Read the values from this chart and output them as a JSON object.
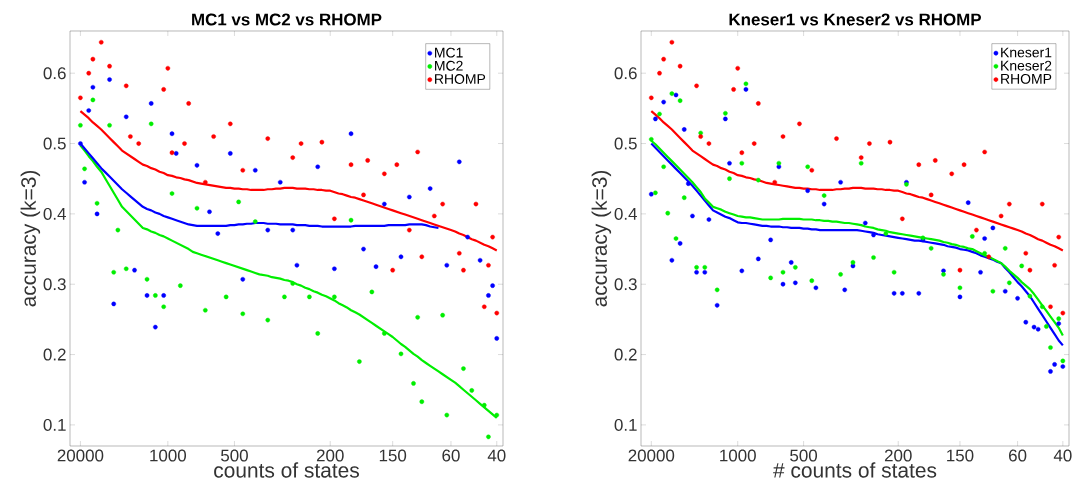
{
  "chart_data": [
    {
      "type": "scatter",
      "title": "MC1 vs MC2 vs RHOMP",
      "xlabel": "counts of states",
      "ylabel": "accuracy (k=3)",
      "ylim": [
        0.07,
        0.66
      ],
      "categories": [
        "20000",
        null,
        null,
        null,
        null,
        null,
        null,
        null,
        null,
        null,
        null,
        null,
        null,
        null,
        null,
        null,
        null,
        null,
        null,
        null,
        null,
        "1000",
        null,
        null,
        null,
        null,
        null,
        null,
        null,
        null,
        null,
        null,
        null,
        null,
        null,
        null,
        null,
        "500",
        null,
        null,
        null,
        null,
        null,
        null,
        null,
        null,
        null,
        null,
        null,
        null,
        null,
        null,
        null,
        null,
        null,
        null,
        null,
        null,
        null,
        null,
        "200",
        null,
        null,
        null,
        null,
        null,
        null,
        null,
        null,
        null,
        null,
        null,
        null,
        null,
        null,
        "150",
        null,
        null,
        null,
        null,
        null,
        null,
        null,
        null,
        null,
        null,
        null,
        null,
        null,
        "60",
        null,
        null,
        null,
        null,
        null,
        null,
        null,
        null,
        null,
        null,
        "40"
      ],
      "yticks": [
        0.1,
        0.2,
        0.3,
        0.4,
        0.5,
        0.6
      ],
      "legend": "top right",
      "series": [
        {
          "name": "MC1",
          "color": "#0000ff",
          "marker": "circle",
          "values": [
            0.5,
            0.445,
            0.547,
            0.58,
            0.4,
            null,
            null,
            0.591,
            0.272,
            null,
            null,
            0.538,
            null,
            0.32,
            null,
            null,
            0.284,
            0.557,
            0.239,
            null,
            0.284,
            null,
            0.514,
            0.486,
            null,
            null,
            null,
            null,
            0.469,
            null,
            null,
            0.403,
            null,
            0.372,
            null,
            null,
            0.486,
            null,
            null,
            0.307,
            null,
            null,
            0.462,
            null,
            null,
            0.377,
            null,
            null,
            0.445,
            null,
            null,
            0.377,
            0.327,
            null,
            null,
            null,
            null,
            0.467,
            null,
            null,
            null,
            0.322,
            null,
            null,
            null,
            0.514,
            null,
            null,
            0.35,
            null,
            null,
            0.325,
            null,
            0.414,
            null,
            null,
            null,
            0.339,
            null,
            0.424,
            null,
            null,
            null,
            null,
            0.436,
            null,
            null,
            null,
            0.327,
            null,
            null,
            0.474,
            null,
            0.367,
            null,
            null,
            0.334,
            null,
            0.284,
            0.298,
            0.223
          ]
        },
        {
          "name": "MC2",
          "color": "#00ee00",
          "marker": "circle",
          "values": [
            0.526,
            0.464,
            null,
            0.562,
            0.415,
            null,
            null,
            0.526,
            0.317,
            0.377,
            null,
            0.322,
            null,
            null,
            null,
            null,
            0.307,
            0.528,
            0.284,
            null,
            0.268,
            null,
            0.429,
            null,
            0.298,
            null,
            null,
            null,
            0.408,
            null,
            0.263,
            null,
            null,
            null,
            null,
            0.282,
            null,
            null,
            0.417,
            0.258,
            null,
            null,
            0.389,
            null,
            null,
            0.249,
            null,
            null,
            null,
            0.282,
            null,
            0.301,
            null,
            null,
            null,
            0.282,
            null,
            0.23,
            null,
            null,
            null,
            0.282,
            null,
            null,
            null,
            0.391,
            null,
            0.19,
            null,
            null,
            0.289,
            null,
            null,
            0.23,
            null,
            null,
            null,
            0.201,
            null,
            null,
            0.159,
            0.253,
            0.133,
            null,
            null,
            null,
            null,
            0.256,
            0.114,
            null,
            null,
            null,
            0.18,
            null,
            0.149,
            null,
            null,
            0.128,
            0.083,
            null,
            0.114
          ]
        },
        {
          "name": "RHOMP",
          "color": "#ff0000",
          "marker": "circle",
          "values": [
            0.565,
            null,
            0.6,
            0.62,
            null,
            0.644,
            null,
            0.61,
            null,
            null,
            null,
            0.582,
            0.51,
            null,
            0.5,
            null,
            null,
            null,
            null,
            null,
            0.577,
            0.607,
            0.487,
            null,
            null,
            0.5,
            0.557,
            null,
            null,
            null,
            0.445,
            null,
            0.51,
            null,
            null,
            null,
            0.528,
            null,
            null,
            0.462,
            null,
            null,
            null,
            null,
            null,
            0.507,
            null,
            null,
            null,
            null,
            null,
            0.48,
            null,
            0.5,
            null,
            null,
            null,
            null,
            0.502,
            null,
            null,
            0.393,
            null,
            null,
            null,
            0.47,
            null,
            null,
            0.427,
            0.476,
            null,
            null,
            null,
            0.457,
            null,
            0.32,
            0.47,
            null,
            null,
            0.377,
            null,
            0.488,
            0.339,
            null,
            null,
            0.397,
            null,
            0.414,
            null,
            null,
            null,
            0.344,
            0.32,
            null,
            null,
            0.414,
            null,
            0.268,
            0.327,
            0.367,
            0.259
          ]
        },
        {
          "type": "line",
          "color": "#ff0000",
          "values": [
            0.546,
            0.541,
            0.536,
            0.53,
            0.525,
            0.52,
            0.514,
            0.508,
            0.502,
            0.496,
            0.49,
            0.486,
            0.482,
            0.478,
            0.474,
            0.47,
            0.468,
            0.465,
            0.463,
            0.46,
            0.458,
            0.455,
            0.454,
            0.452,
            0.451,
            0.449,
            0.448,
            0.446,
            0.444,
            0.443,
            0.442,
            0.441,
            0.44,
            0.439,
            0.438,
            0.437,
            0.437,
            0.436,
            0.436,
            0.435,
            0.435,
            0.434,
            0.434,
            0.434,
            0.434,
            0.435,
            0.435,
            0.436,
            0.436,
            0.437,
            0.437,
            0.437,
            0.436,
            0.436,
            0.436,
            0.435,
            0.435,
            0.434,
            0.434,
            0.433,
            0.433,
            0.431,
            0.429,
            0.428,
            0.426,
            0.424,
            0.423,
            0.421,
            0.419,
            0.417,
            0.415,
            0.413,
            0.411,
            0.409,
            0.407,
            0.405,
            0.403,
            0.401,
            0.399,
            0.397,
            0.395,
            0.393,
            0.391,
            0.389,
            0.387,
            0.385,
            0.383,
            0.381,
            0.379,
            0.377,
            0.375,
            0.372,
            0.37,
            0.367,
            0.364,
            0.362,
            0.359,
            0.356,
            0.354,
            0.351,
            0.348
          ]
        },
        {
          "type": "line",
          "color": "#0000ff",
          "values": [
            0.5,
            0.493,
            0.486,
            0.479,
            0.472,
            0.465,
            0.459,
            0.453,
            0.447,
            0.441,
            0.435,
            0.43,
            0.425,
            0.42,
            0.415,
            0.41,
            0.407,
            0.405,
            0.402,
            0.4,
            0.397,
            0.395,
            0.393,
            0.391,
            0.389,
            0.387,
            0.385,
            0.384,
            0.383,
            0.383,
            0.383,
            0.383,
            0.383,
            0.383,
            0.383,
            0.383,
            0.384,
            0.384,
            0.385,
            0.385,
            0.386,
            0.386,
            0.387,
            0.387,
            0.387,
            0.386,
            0.386,
            0.386,
            0.385,
            0.385,
            0.385,
            0.385,
            0.384,
            0.384,
            0.384,
            0.383,
            0.383,
            0.383,
            0.382,
            0.382,
            0.382,
            0.382,
            0.382,
            0.382,
            0.382,
            0.382,
            0.383,
            0.383,
            0.383,
            0.383,
            0.383,
            0.383,
            0.383,
            0.383,
            0.384,
            0.384,
            0.384,
            0.384,
            0.384,
            0.385,
            0.385,
            0.385,
            0.385,
            0.384,
            0.382,
            0.381,
            0.38,
            null,
            null,
            null,
            null,
            null,
            null,
            null,
            null,
            null,
            null,
            null,
            null,
            null,
            null
          ]
        },
        {
          "type": "line",
          "color": "#00ee00",
          "values": [
            0.497,
            0.49,
            0.482,
            0.475,
            0.467,
            0.46,
            0.45,
            0.44,
            0.43,
            0.42,
            0.41,
            0.404,
            0.398,
            0.392,
            0.386,
            0.38,
            0.378,
            0.375,
            0.373,
            0.37,
            0.368,
            0.365,
            0.362,
            0.359,
            0.356,
            0.353,
            0.35,
            0.346,
            0.344,
            0.342,
            0.34,
            0.338,
            0.336,
            0.334,
            0.332,
            0.33,
            0.328,
            0.326,
            0.324,
            0.322,
            0.32,
            0.318,
            0.316,
            0.314,
            0.313,
            0.312,
            0.31,
            0.309,
            0.308,
            0.306,
            0.305,
            0.303,
            0.3,
            0.298,
            0.295,
            0.293,
            0.29,
            0.288,
            0.285,
            0.283,
            0.28,
            0.277,
            0.273,
            0.27,
            0.267,
            0.263,
            0.26,
            0.257,
            0.253,
            0.249,
            0.245,
            0.241,
            0.237,
            0.233,
            0.229,
            0.225,
            0.22,
            0.215,
            0.211,
            0.206,
            0.201,
            0.197,
            0.192,
            0.188,
            0.184,
            0.18,
            0.176,
            0.172,
            0.168,
            0.164,
            0.16,
            0.155,
            0.15,
            0.145,
            0.14,
            0.135,
            0.13,
            0.125,
            0.12,
            0.115,
            0.11
          ]
        }
      ]
    },
    {
      "type": "scatter",
      "title": "Kneser1 vs Kneser2 vs RHOMP",
      "xlabel": "# counts of states",
      "ylabel": "accuracy (k=3)",
      "ylim": [
        0.07,
        0.66
      ],
      "categories": [
        "20000",
        null,
        null,
        null,
        null,
        null,
        null,
        null,
        null,
        null,
        null,
        null,
        null,
        null,
        null,
        null,
        null,
        null,
        null,
        null,
        null,
        "1000",
        null,
        null,
        null,
        null,
        null,
        null,
        null,
        null,
        null,
        null,
        null,
        null,
        null,
        null,
        null,
        "500",
        null,
        null,
        null,
        null,
        null,
        null,
        null,
        null,
        null,
        null,
        null,
        null,
        null,
        null,
        null,
        null,
        null,
        null,
        null,
        null,
        null,
        null,
        "200",
        null,
        null,
        null,
        null,
        null,
        null,
        null,
        null,
        null,
        null,
        null,
        null,
        null,
        null,
        "150",
        null,
        null,
        null,
        null,
        null,
        null,
        null,
        null,
        null,
        null,
        null,
        null,
        null,
        "60",
        null,
        null,
        null,
        null,
        null,
        null,
        null,
        null,
        null,
        null,
        "40"
      ],
      "yticks": [
        0.1,
        0.2,
        0.3,
        0.4,
        0.5,
        0.6
      ],
      "legend": "top right",
      "series": [
        {
          "name": "Kneser1",
          "color": "#0000ff",
          "marker": "circle",
          "values": [
            0.428,
            0.535,
            null,
            0.559,
            null,
            0.334,
            0.569,
            0.358,
            0.52,
            0.443,
            0.397,
            0.317,
            null,
            0.317,
            0.392,
            null,
            0.27,
            null,
            0.535,
            0.472,
            null,
            null,
            0.319,
            0.577,
            null,
            null,
            0.336,
            null,
            null,
            0.363,
            null,
            0.467,
            0.3,
            null,
            0.331,
            0.302,
            null,
            null,
            0.433,
            null,
            0.295,
            null,
            0.414,
            null,
            null,
            null,
            0.445,
            0.292,
            null,
            0.326,
            null,
            null,
            0.387,
            null,
            0.37,
            null,
            null,
            null,
            null,
            0.287,
            null,
            0.287,
            0.445,
            null,
            null,
            0.287,
            0.363,
            null,
            null,
            null,
            null,
            0.319,
            null,
            null,
            null,
            0.282,
            null,
            0.416,
            null,
            null,
            0.317,
            0.365,
            null,
            0.38,
            null,
            null,
            0.29,
            null,
            null,
            0.28,
            null,
            0.246,
            null,
            0.239,
            0.236,
            null,
            null,
            0.176,
            0.186,
            0.244,
            0.183
          ]
        },
        {
          "name": "Kneser2",
          "color": "#00ee00",
          "marker": "circle",
          "values": [
            0.506,
            0.43,
            0.542,
            0.467,
            0.401,
            0.571,
            0.365,
            0.561,
            0.423,
            null,
            null,
            0.324,
            0.515,
            0.324,
            null,
            null,
            0.292,
            null,
            0.543,
            0.45,
            null,
            null,
            0.472,
            0.585,
            null,
            null,
            0.448,
            null,
            null,
            0.309,
            null,
            0.472,
            0.317,
            null,
            null,
            0.324,
            null,
            null,
            0.467,
            0.305,
            null,
            null,
            0.426,
            null,
            null,
            null,
            0.314,
            null,
            null,
            0.331,
            null,
            0.472,
            null,
            null,
            0.338,
            null,
            null,
            0.372,
            null,
            0.317,
            null,
            null,
            0.442,
            null,
            null,
            null,
            0.366,
            null,
            0.351,
            null,
            null,
            0.314,
            null,
            null,
            null,
            0.295,
            null,
            null,
            0.368,
            null,
            null,
            0.344,
            null,
            0.29,
            null,
            null,
            0.351,
            0.302,
            null,
            null,
            0.326,
            null,
            0.283,
            null,
            null,
            0.268,
            0.24,
            0.21,
            null,
            0.251,
            0.191
          ]
        },
        {
          "name": "RHOMP",
          "color": "#ff0000",
          "marker": "circle",
          "values": [
            0.565,
            null,
            0.6,
            0.62,
            null,
            0.644,
            null,
            0.61,
            null,
            null,
            null,
            0.582,
            0.51,
            null,
            0.5,
            null,
            null,
            null,
            null,
            null,
            0.577,
            0.607,
            0.487,
            null,
            null,
            0.5,
            0.557,
            null,
            null,
            null,
            0.445,
            null,
            0.51,
            null,
            null,
            null,
            0.528,
            null,
            null,
            0.462,
            null,
            null,
            null,
            null,
            null,
            0.507,
            null,
            null,
            null,
            null,
            null,
            0.48,
            null,
            0.5,
            null,
            null,
            null,
            null,
            0.502,
            null,
            null,
            0.393,
            null,
            null,
            null,
            0.47,
            null,
            null,
            0.427,
            0.476,
            null,
            null,
            null,
            0.457,
            null,
            0.32,
            0.47,
            null,
            null,
            0.377,
            null,
            0.488,
            0.339,
            null,
            null,
            0.397,
            null,
            0.414,
            null,
            null,
            null,
            0.344,
            0.32,
            null,
            null,
            0.414,
            null,
            0.268,
            0.327,
            0.367,
            0.259
          ]
        },
        {
          "type": "line",
          "color": "#ff0000",
          "values": [
            0.546,
            0.541,
            0.536,
            0.53,
            0.525,
            0.52,
            0.514,
            0.508,
            0.502,
            0.496,
            0.49,
            0.486,
            0.482,
            0.478,
            0.474,
            0.47,
            0.468,
            0.465,
            0.463,
            0.46,
            0.458,
            0.455,
            0.454,
            0.452,
            0.451,
            0.449,
            0.448,
            0.446,
            0.444,
            0.443,
            0.442,
            0.441,
            0.44,
            0.439,
            0.438,
            0.437,
            0.437,
            0.436,
            0.436,
            0.435,
            0.435,
            0.434,
            0.434,
            0.434,
            0.434,
            0.435,
            0.435,
            0.436,
            0.436,
            0.437,
            0.437,
            0.437,
            0.436,
            0.436,
            0.436,
            0.435,
            0.435,
            0.434,
            0.434,
            0.433,
            0.433,
            0.431,
            0.429,
            0.428,
            0.426,
            0.424,
            0.423,
            0.421,
            0.419,
            0.417,
            0.415,
            0.413,
            0.411,
            0.409,
            0.407,
            0.405,
            0.403,
            0.401,
            0.399,
            0.397,
            0.395,
            0.393,
            0.391,
            0.389,
            0.387,
            0.385,
            0.383,
            0.381,
            0.379,
            0.377,
            0.375,
            0.372,
            0.37,
            0.367,
            0.364,
            0.362,
            0.359,
            0.356,
            0.354,
            0.351,
            0.348
          ]
        },
        {
          "type": "line",
          "color": "#00ee00",
          "values": [
            0.504,
            0.499,
            0.493,
            0.487,
            0.481,
            0.475,
            0.469,
            0.463,
            0.457,
            0.451,
            0.445,
            0.438,
            0.431,
            0.422,
            0.416,
            0.41,
            0.408,
            0.406,
            0.403,
            0.401,
            0.399,
            0.397,
            0.396,
            0.395,
            0.395,
            0.394,
            0.393,
            0.392,
            0.392,
            0.392,
            0.392,
            0.392,
            0.393,
            0.393,
            0.393,
            0.393,
            0.393,
            0.392,
            0.392,
            0.392,
            0.391,
            0.391,
            0.39,
            0.39,
            0.389,
            0.389,
            0.388,
            0.387,
            0.387,
            0.386,
            0.385,
            0.384,
            0.382,
            0.381,
            0.38,
            0.378,
            0.377,
            0.376,
            0.374,
            0.373,
            0.372,
            0.371,
            0.37,
            0.369,
            0.368,
            0.367,
            0.366,
            0.365,
            0.364,
            0.363,
            0.362,
            0.36,
            0.359,
            0.357,
            0.356,
            0.354,
            0.353,
            0.351,
            0.35,
            0.347,
            0.344,
            0.341,
            0.339,
            0.336,
            0.333,
            0.33,
            0.325,
            0.319,
            0.314,
            0.309,
            0.303,
            0.298,
            0.293,
            0.286,
            0.278,
            0.27,
            0.262,
            0.254,
            0.246,
            0.238,
            0.227
          ]
        },
        {
          "type": "line",
          "color": "#0000ff",
          "values": [
            0.5,
            0.494,
            0.488,
            0.482,
            0.476,
            0.47,
            0.464,
            0.458,
            0.452,
            0.446,
            0.44,
            0.433,
            0.426,
            0.419,
            0.412,
            0.405,
            0.402,
            0.399,
            0.396,
            0.394,
            0.391,
            0.388,
            0.387,
            0.387,
            0.386,
            0.385,
            0.384,
            0.383,
            0.383,
            0.382,
            0.382,
            0.382,
            0.381,
            0.381,
            0.38,
            0.38,
            0.38,
            0.379,
            0.379,
            0.378,
            0.378,
            0.377,
            0.377,
            0.377,
            0.377,
            0.377,
            0.377,
            0.377,
            0.377,
            0.377,
            0.377,
            0.376,
            0.375,
            0.374,
            0.373,
            0.371,
            0.37,
            0.369,
            0.368,
            0.367,
            0.366,
            0.365,
            0.364,
            0.363,
            0.362,
            0.362,
            0.361,
            0.36,
            0.359,
            0.358,
            0.357,
            0.356,
            0.354,
            0.353,
            0.352,
            0.35,
            0.349,
            0.348,
            0.346,
            0.344,
            0.341,
            0.339,
            0.337,
            0.335,
            0.332,
            0.33,
            0.323,
            0.317,
            0.31,
            0.303,
            0.297,
            0.29,
            0.283,
            0.274,
            0.265,
            0.256,
            0.247,
            0.238,
            0.229,
            0.22,
            0.213
          ]
        }
      ]
    }
  ]
}
